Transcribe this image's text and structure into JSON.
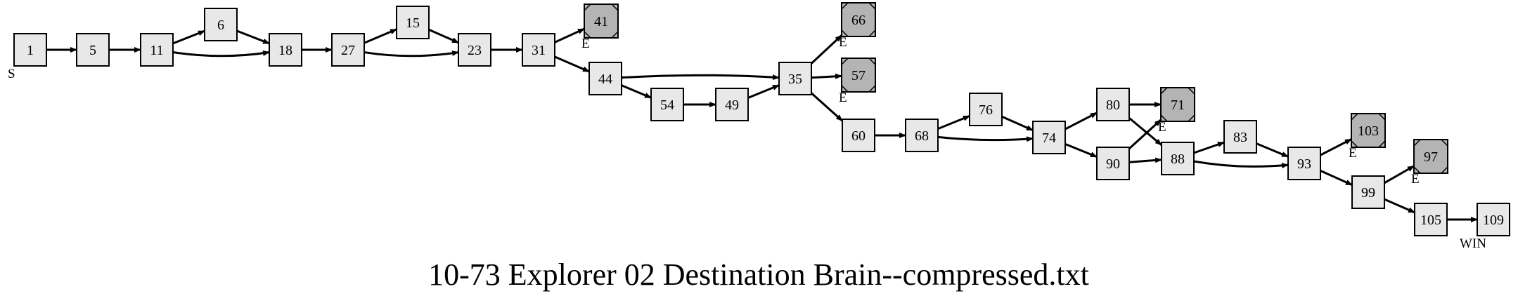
{
  "title": "10-73 Explorer 02 Destination Brain--compressed.txt",
  "colors": {
    "node_fill": "#e8e8e8",
    "end_fill": "#b4b4b4",
    "stroke": "#000000"
  },
  "nodes": [
    {
      "id": "1",
      "kind": "normal"
    },
    {
      "id": "5",
      "kind": "normal"
    },
    {
      "id": "11",
      "kind": "normal"
    },
    {
      "id": "6",
      "kind": "normal"
    },
    {
      "id": "18",
      "kind": "normal"
    },
    {
      "id": "27",
      "kind": "normal"
    },
    {
      "id": "15",
      "kind": "normal"
    },
    {
      "id": "23",
      "kind": "normal"
    },
    {
      "id": "31",
      "kind": "normal"
    },
    {
      "id": "41",
      "kind": "end"
    },
    {
      "id": "44",
      "kind": "normal"
    },
    {
      "id": "54",
      "kind": "normal"
    },
    {
      "id": "49",
      "kind": "normal"
    },
    {
      "id": "35",
      "kind": "normal"
    },
    {
      "id": "66",
      "kind": "end"
    },
    {
      "id": "57",
      "kind": "end"
    },
    {
      "id": "60",
      "kind": "normal"
    },
    {
      "id": "68",
      "kind": "normal"
    },
    {
      "id": "76",
      "kind": "normal"
    },
    {
      "id": "74",
      "kind": "normal"
    },
    {
      "id": "80",
      "kind": "normal"
    },
    {
      "id": "90",
      "kind": "normal"
    },
    {
      "id": "71",
      "kind": "end"
    },
    {
      "id": "88",
      "kind": "normal"
    },
    {
      "id": "83",
      "kind": "normal"
    },
    {
      "id": "93",
      "kind": "normal"
    },
    {
      "id": "103",
      "kind": "end"
    },
    {
      "id": "97",
      "kind": "end"
    },
    {
      "id": "99",
      "kind": "normal"
    },
    {
      "id": "105",
      "kind": "normal"
    },
    {
      "id": "109",
      "kind": "normal"
    }
  ],
  "edges": [
    [
      "1",
      "5"
    ],
    [
      "5",
      "11"
    ],
    [
      "11",
      "6"
    ],
    [
      "11",
      "18"
    ],
    [
      "6",
      "18"
    ],
    [
      "18",
      "27"
    ],
    [
      "27",
      "15"
    ],
    [
      "27",
      "23"
    ],
    [
      "15",
      "23"
    ],
    [
      "23",
      "31"
    ],
    [
      "31",
      "41"
    ],
    [
      "31",
      "44"
    ],
    [
      "44",
      "35"
    ],
    [
      "44",
      "54"
    ],
    [
      "54",
      "49"
    ],
    [
      "49",
      "35"
    ],
    [
      "35",
      "66"
    ],
    [
      "35",
      "57"
    ],
    [
      "35",
      "60"
    ],
    [
      "60",
      "68"
    ],
    [
      "68",
      "76"
    ],
    [
      "68",
      "74"
    ],
    [
      "76",
      "74"
    ],
    [
      "74",
      "80"
    ],
    [
      "74",
      "90"
    ],
    [
      "80",
      "71"
    ],
    [
      "80",
      "88"
    ],
    [
      "90",
      "71"
    ],
    [
      "90",
      "88"
    ],
    [
      "88",
      "83"
    ],
    [
      "88",
      "93"
    ],
    [
      "83",
      "93"
    ],
    [
      "93",
      "103"
    ],
    [
      "93",
      "99"
    ],
    [
      "99",
      "97"
    ],
    [
      "99",
      "105"
    ],
    [
      "105",
      "109"
    ]
  ],
  "tags": [
    {
      "text": "S",
      "node": "1"
    },
    {
      "text": "E",
      "node": "41"
    },
    {
      "text": "E",
      "node": "66"
    },
    {
      "text": "E",
      "node": "57"
    },
    {
      "text": "E",
      "node": "71"
    },
    {
      "text": "E",
      "node": "103"
    },
    {
      "text": "E",
      "node": "97"
    },
    {
      "text": "WIN",
      "node": "109"
    }
  ]
}
